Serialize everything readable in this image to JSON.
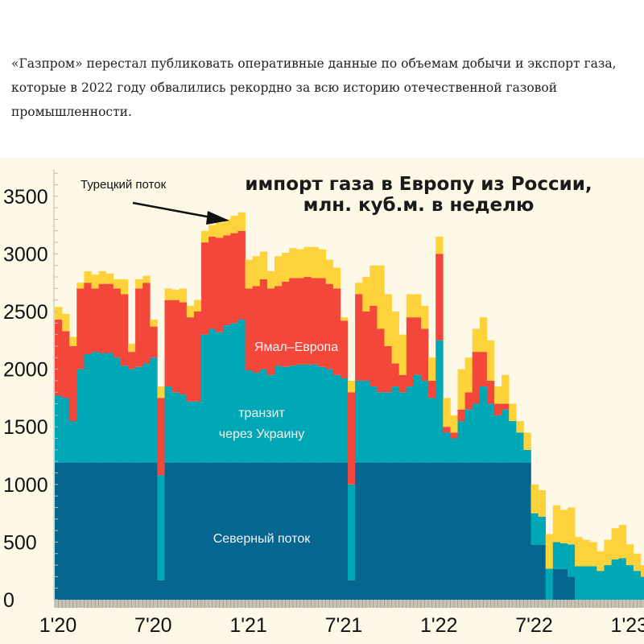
{
  "article": {
    "paragraph": "«Газпром» перестал публиковать оперативные данные по объемам добычи и экспорт газа, которые в 2022 году обвалились рекордно за всю историю отечественной газовой промышленности."
  },
  "chart_data": {
    "type": "bar",
    "stacked": true,
    "title_line1": "импорт газа в Европу из России,",
    "title_line2": "млн. куб.м. в неделю",
    "annotation": "Турецкий поток",
    "ylim": [
      0,
      3700
    ],
    "y_ticks": [
      0,
      500,
      1000,
      1500,
      2000,
      2500,
      3000,
      3500
    ],
    "x_ticks": [
      {
        "label": "1'20",
        "index": 0
      },
      {
        "label": "7'20",
        "index": 13
      },
      {
        "label": "1'21",
        "index": 26
      },
      {
        "label": "7'21",
        "index": 39
      },
      {
        "label": "1'22",
        "index": 52
      },
      {
        "label": "7'22",
        "index": 65
      },
      {
        "label": "1'23",
        "index": 78
      }
    ],
    "grid": false,
    "series": [
      {
        "name": "Северный поток",
        "color": "#05678f",
        "values": [
          1190,
          1190,
          1190,
          1190,
          1190,
          1190,
          1190,
          1190,
          1190,
          1190,
          1190,
          1190,
          1190,
          1190,
          170,
          1190,
          1190,
          1190,
          1190,
          1190,
          1190,
          1190,
          1190,
          1190,
          1190,
          1190,
          1190,
          1190,
          1190,
          1190,
          1190,
          1190,
          1190,
          1190,
          1190,
          1190,
          1190,
          1190,
          1190,
          1190,
          170,
          1190,
          1190,
          1190,
          1190,
          1190,
          1190,
          1190,
          1190,
          1190,
          1190,
          1190,
          1190,
          1190,
          1190,
          1190,
          1190,
          1190,
          1190,
          1190,
          1190,
          1190,
          1190,
          1190,
          1190,
          475,
          475,
          0,
          265,
          265,
          200,
          0,
          0,
          0,
          0,
          0,
          0,
          0,
          0,
          0,
          0
        ]
      },
      {
        "name": "транзит через Украину",
        "color": "#00a7b5",
        "values": [
          580,
          560,
          360,
          810,
          940,
          960,
          950,
          950,
          910,
          840,
          810,
          830,
          860,
          910,
          910,
          660,
          610,
          590,
          530,
          530,
          1110,
          1160,
          1130,
          1190,
          1210,
          1240,
          800,
          780,
          810,
          760,
          840,
          830,
          840,
          850,
          850,
          850,
          830,
          810,
          760,
          730,
          830,
          710,
          710,
          660,
          610,
          610,
          660,
          610,
          660,
          760,
          710,
          560,
          1060,
          260,
          210,
          360,
          460,
          510,
          660,
          510,
          410,
          460,
          360,
          260,
          110,
          275,
          245,
          270,
          235,
          225,
          280,
          290,
          290,
          290,
          250,
          300,
          350,
          360,
          300,
          250,
          200
        ]
      },
      {
        "name": "Ямал–Европа",
        "color": "#f2473a",
        "values": [
          660,
          580,
          650,
          700,
          620,
          550,
          600,
          600,
          600,
          620,
          150,
          680,
          700,
          270,
          670,
          750,
          800,
          800,
          730,
          780,
          800,
          800,
          820,
          780,
          780,
          770,
          710,
          750,
          780,
          750,
          690,
          740,
          760,
          750,
          760,
          750,
          770,
          740,
          750,
          500,
          800,
          750,
          600,
          700,
          550,
          400,
          200,
          150,
          600,
          500,
          450,
          150,
          750,
          50,
          50,
          100,
          150,
          450,
          300,
          200,
          100,
          50,
          0,
          0,
          0,
          0,
          0,
          0,
          0,
          0,
          0,
          0,
          0,
          0,
          0,
          0,
          0,
          0,
          0,
          0,
          0
        ]
      },
      {
        "name": "Турецкий поток",
        "color": "#fdd23a",
        "values": [
          110,
          150,
          80,
          50,
          100,
          120,
          110,
          90,
          80,
          130,
          70,
          80,
          60,
          60,
          100,
          100,
          90,
          120,
          100,
          100,
          100,
          100,
          130,
          140,
          150,
          160,
          250,
          260,
          240,
          150,
          260,
          250,
          260,
          250,
          260,
          270,
          250,
          210,
          180,
          30,
          100,
          100,
          300,
          350,
          550,
          450,
          450,
          350,
          200,
          200,
          200,
          200,
          150,
          250,
          150,
          350,
          300,
          200,
          300,
          350,
          150,
          250,
          150,
          100,
          150,
          250,
          230,
          300,
          320,
          290,
          320,
          255,
          230,
          210,
          170,
          220,
          270,
          290,
          180,
          150,
          100
        ]
      }
    ]
  }
}
